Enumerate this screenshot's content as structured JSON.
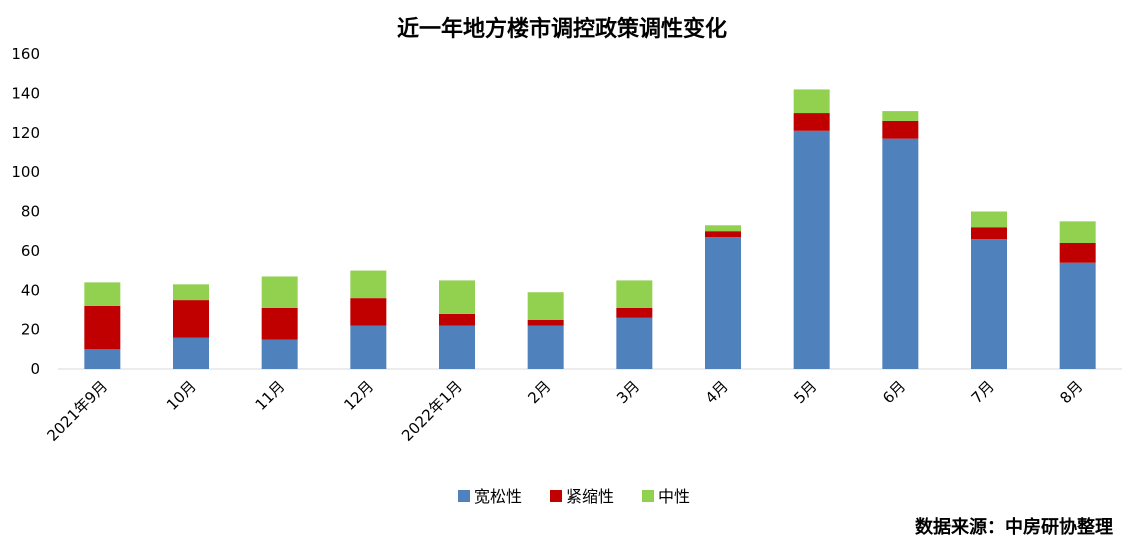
{
  "chart_data": {
    "type": "bar",
    "stacked": true,
    "title": "近一年地方楼市调控政策调性变化",
    "categories": [
      "2021年9月",
      "10月",
      "11月",
      "12月",
      "2022年1月",
      "2月",
      "3月",
      "4月",
      "5月",
      "6月",
      "7月",
      "8月"
    ],
    "series": [
      {
        "name": "宽松性",
        "color": "#4f81bd",
        "values": [
          10,
          16,
          15,
          22,
          22,
          22,
          26,
          67,
          121,
          117,
          66,
          54
        ]
      },
      {
        "name": "紧缩性",
        "color": "#c00000",
        "values": [
          22,
          19,
          16,
          14,
          6,
          3,
          5,
          3,
          9,
          9,
          6,
          10
        ]
      },
      {
        "name": "中性",
        "color": "#92d050",
        "values": [
          12,
          8,
          16,
          14,
          17,
          14,
          14,
          3,
          12,
          5,
          8,
          11
        ]
      }
    ],
    "ylim": [
      0,
      160
    ],
    "yticks": [
      0,
      20,
      40,
      60,
      80,
      100,
      120,
      140,
      160
    ],
    "xlabel": "",
    "ylabel": "",
    "grid": false,
    "legend_position": "bottom"
  },
  "source_note": "数据来源：中房研协整理"
}
